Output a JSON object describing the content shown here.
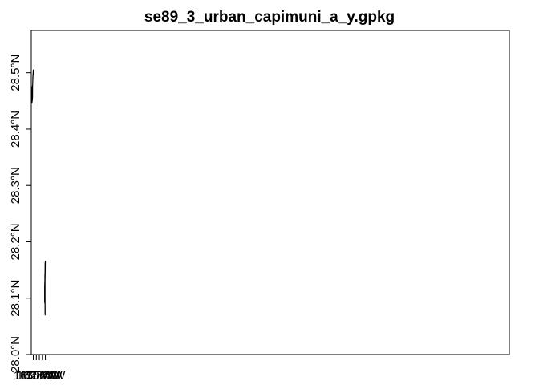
{
  "title": "se89_3_urban_capimuni_a_y.gpkg",
  "chart_data": {
    "type": "map",
    "title": "se89_3_urban_capimuni_a_y.gpkg",
    "xlim": [
      -16.335,
      15.385
    ],
    "x_ticks": [
      {
        "value": -16.2,
        "label": "16.2°W"
      },
      {
        "value": -16.0,
        "label": "16.0°W"
      },
      {
        "value": -15.8,
        "label": "15.8°W"
      },
      {
        "value": -15.6,
        "label": "15.6°W"
      },
      {
        "value": -15.4,
        "label": "15.4°W"
      }
    ],
    "ylim": [
      28.0,
      28.575
    ],
    "y_ticks": [
      {
        "value": 28.0,
        "label": "28.0°N"
      },
      {
        "value": 28.1,
        "label": "28.1°N"
      },
      {
        "value": 28.2,
        "label": "28.2°N"
      },
      {
        "value": 28.3,
        "label": "28.3°N"
      },
      {
        "value": 28.4,
        "label": "28.4°N"
      },
      {
        "value": 28.5,
        "label": "28.5°N"
      }
    ],
    "polygons": [
      {
        "coords": [
          [
            -16.289,
            28.446
          ],
          [
            -16.283,
            28.462
          ],
          [
            -16.275,
            28.474
          ],
          [
            -16.26,
            28.477
          ],
          [
            -16.24,
            28.479
          ],
          [
            -16.232,
            28.486
          ],
          [
            -16.218,
            28.494
          ],
          [
            -16.204,
            28.499
          ],
          [
            -16.197,
            28.503
          ],
          [
            -16.203,
            28.505
          ],
          [
            -16.225,
            28.496
          ],
          [
            -16.235,
            28.491
          ],
          [
            -16.242,
            28.478
          ],
          [
            -16.25,
            28.457
          ],
          [
            -16.262,
            28.451
          ],
          [
            -16.276,
            28.45
          ],
          [
            -16.289,
            28.446
          ]
        ]
      },
      {
        "coords": [
          [
            -15.427,
            28.146
          ],
          [
            -15.42,
            28.162
          ],
          [
            -15.398,
            28.166
          ],
          [
            -15.41,
            28.145
          ],
          [
            -15.418,
            28.13
          ],
          [
            -15.419,
            28.115
          ],
          [
            -15.417,
            28.101
          ],
          [
            -15.414,
            28.081
          ],
          [
            -15.416,
            28.07
          ],
          [
            -15.425,
            28.072
          ],
          [
            -15.423,
            28.082
          ],
          [
            -15.426,
            28.089
          ],
          [
            -15.434,
            28.093
          ],
          [
            -15.445,
            28.092
          ],
          [
            -15.452,
            28.096
          ],
          [
            -15.454,
            28.108
          ],
          [
            -15.451,
            28.12
          ],
          [
            -15.444,
            28.125
          ],
          [
            -15.438,
            28.132
          ],
          [
            -15.433,
            28.14
          ],
          [
            -15.427,
            28.146
          ]
        ]
      }
    ]
  }
}
